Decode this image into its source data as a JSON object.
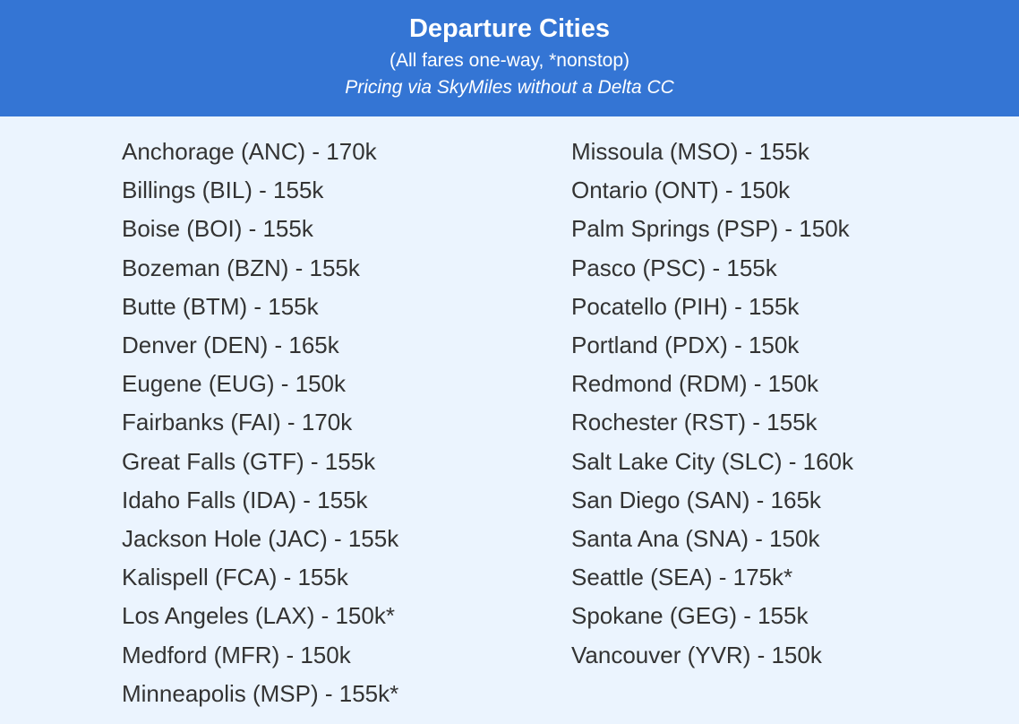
{
  "header": {
    "title": "Departure Cities",
    "subtitle": "(All fares one-way, *nonstop)",
    "note": "Pricing via SkyMiles without a Delta CC",
    "background_color": "#3475d4"
  },
  "cities_left": [
    "Anchorage (ANC) - 170k",
    "Billings (BIL) - 155k",
    "Boise (BOI) - 155k",
    "Bozeman (BZN) - 155k",
    "Butte (BTM) - 155k",
    "Denver (DEN) - 165k",
    "Eugene (EUG) - 150k",
    "Fairbanks (FAI) - 170k",
    "Great Falls (GTF) - 155k",
    "Idaho Falls (IDA) - 155k",
    "Jackson Hole (JAC) - 155k",
    "Kalispell (FCA) - 155k",
    "Los Angeles (LAX) - 150k*",
    "Medford (MFR) - 150k",
    "Minneapolis (MSP) - 155k*"
  ],
  "cities_right": [
    "Missoula (MSO) - 155k",
    "Ontario (ONT) - 150k",
    "Palm Springs (PSP) - 150k",
    "Pasco (PSC) - 155k",
    "Pocatello (PIH) - 155k",
    "Portland (PDX) - 150k",
    "Redmond (RDM) - 150k",
    "Rochester (RST) - 155k",
    "Salt Lake City (SLC) - 160k",
    "San Diego (SAN) - 165k",
    "Santa Ana (SNA) - 150k",
    "Seattle (SEA) - 175k*",
    "Spokane (GEG) - 155k",
    "Vancouver (YVR) - 150k"
  ]
}
